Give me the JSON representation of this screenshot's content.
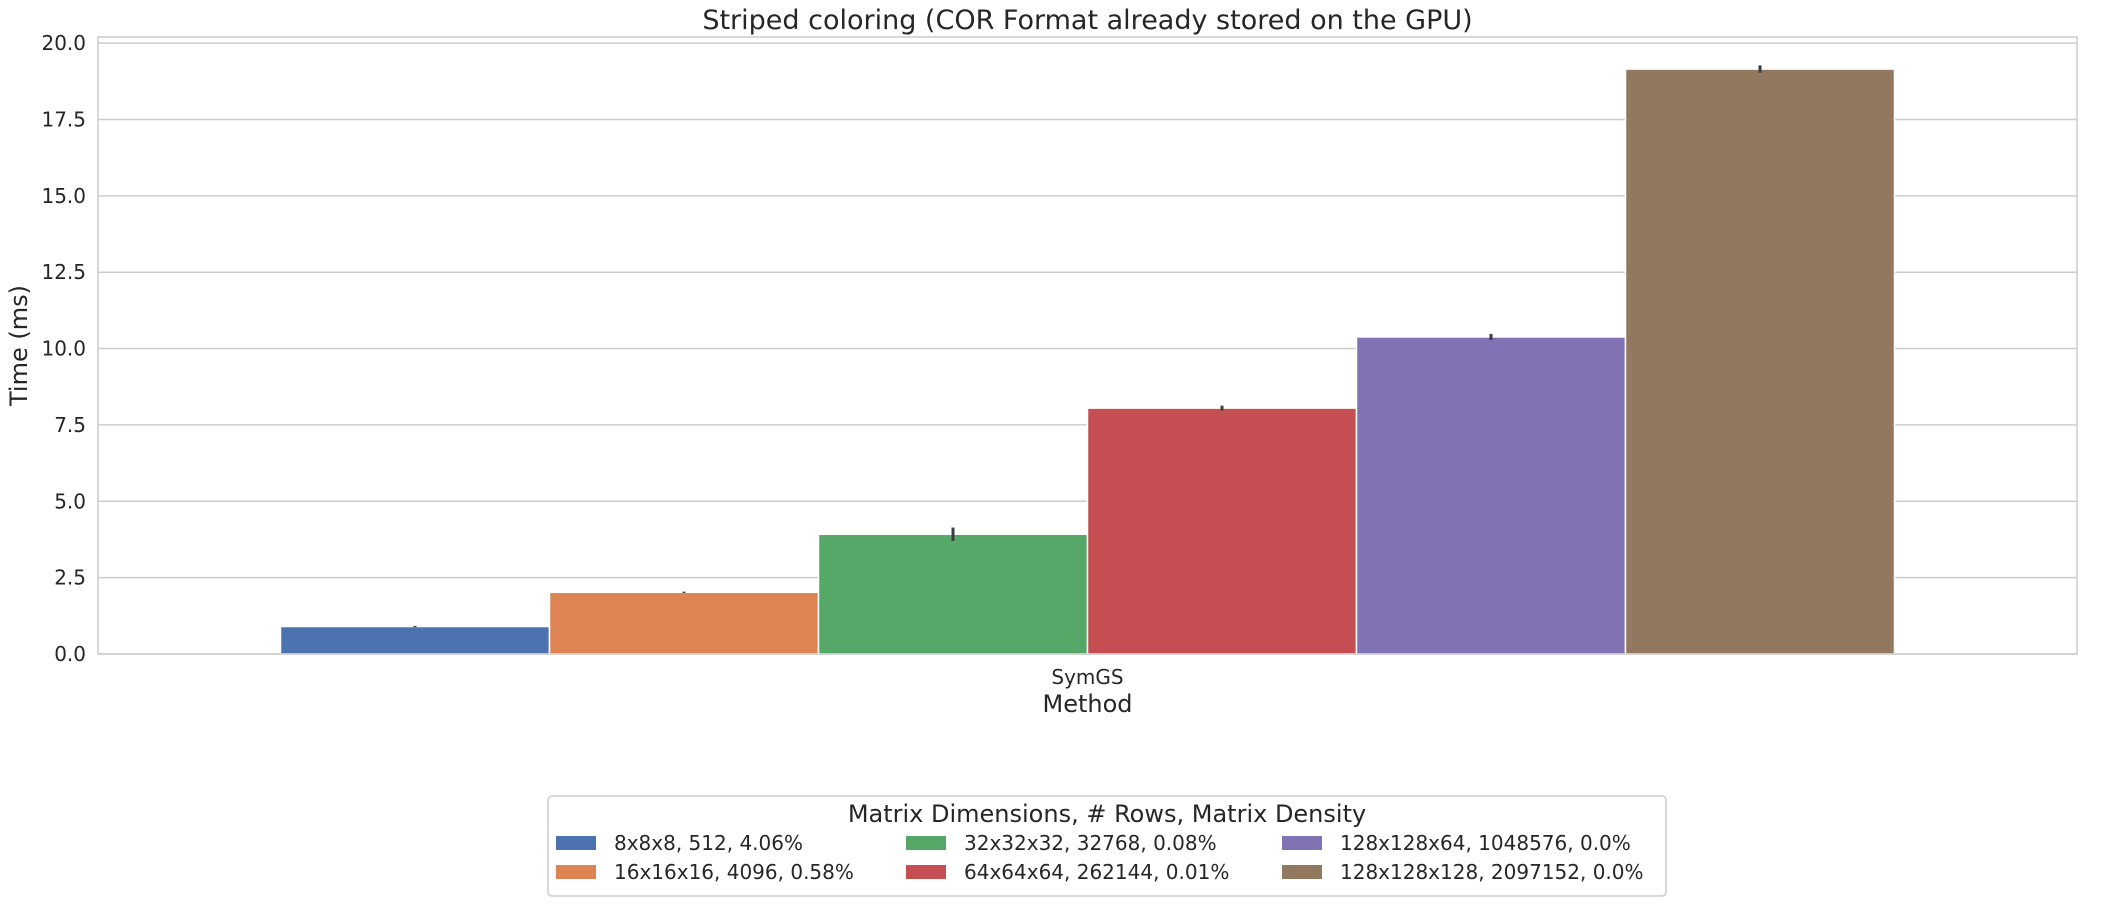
{
  "chart_data": {
    "type": "bar",
    "title": "Striped coloring (COR Format already stored on the GPU)",
    "xlabel": "Method",
    "ylabel": "Time (ms)",
    "categories": [
      "SymGS"
    ],
    "ylim": [
      0,
      20.2
    ],
    "yticks": [
      "0.0",
      "2.5",
      "5.0",
      "7.5",
      "10.0",
      "12.5",
      "15.0",
      "17.5",
      "20.0"
    ],
    "grid": true,
    "legend": {
      "title": "Matrix Dimensions, # Rows, Matrix Density",
      "placement": "bottom-center"
    },
    "series": [
      {
        "name": "8x8x8, 512, 4.06%",
        "values": [
          0.9
        ],
        "error": [
          0.02
        ],
        "color": "#4C72B0"
      },
      {
        "name": "16x16x16, 4096, 0.58%",
        "values": [
          2.02
        ],
        "error": [
          0.02
        ],
        "color": "#DD8452"
      },
      {
        "name": "32x32x32, 32768, 0.08%",
        "values": [
          3.92
        ],
        "error": [
          0.22
        ],
        "color": "#55A868"
      },
      {
        "name": "64x64x64, 262144, 0.01%",
        "values": [
          8.05
        ],
        "error": [
          0.08
        ],
        "color": "#C44E52"
      },
      {
        "name": "128x128x64, 1048576, 0.0%",
        "values": [
          10.38
        ],
        "error": [
          0.1
        ],
        "color": "#8172B3"
      },
      {
        "name": "128x128x128, 2097152, 0.0%",
        "values": [
          19.15
        ],
        "error": [
          0.12
        ],
        "color": "#937860"
      }
    ]
  }
}
